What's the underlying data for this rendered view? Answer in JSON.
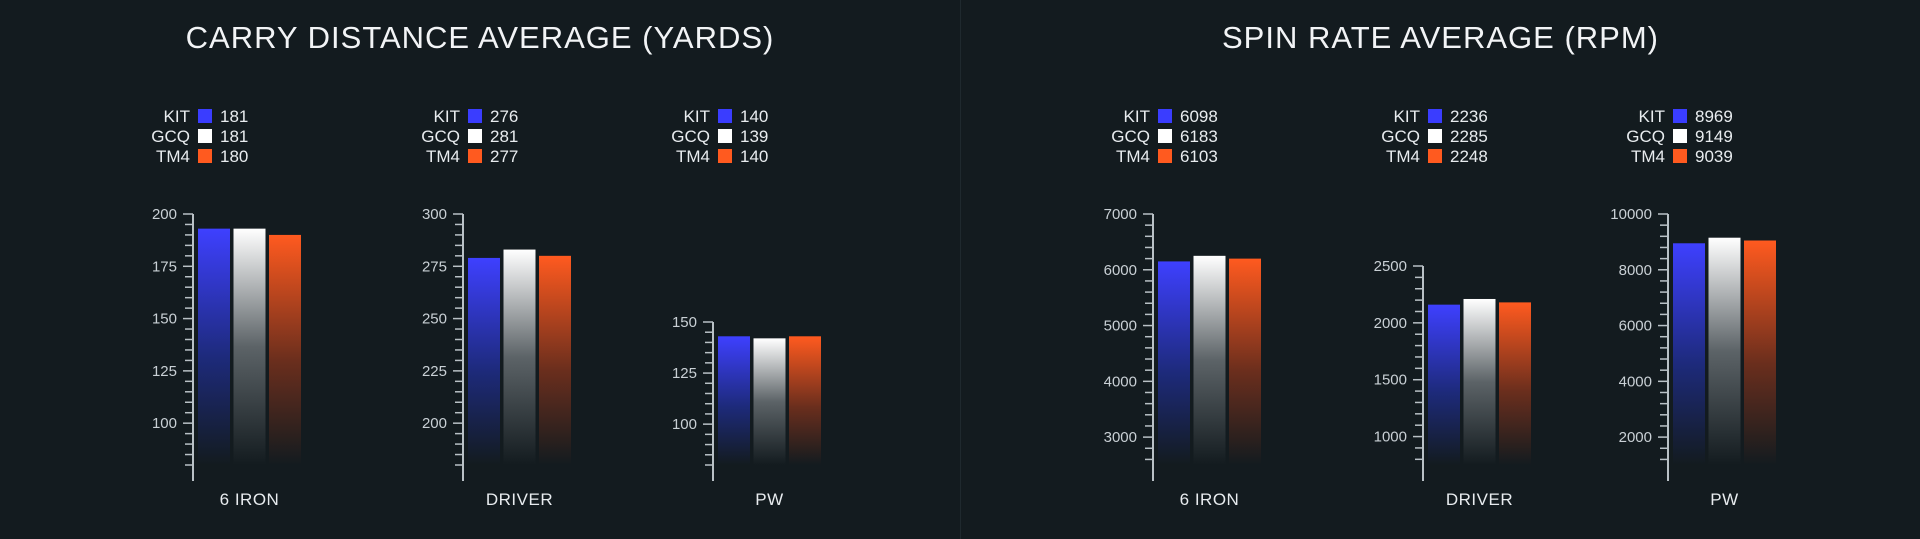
{
  "colors": {
    "background": "#131b1f",
    "axis": "#b9c1c6",
    "KIT": "#3a3dff",
    "GCQ": "#ffffff",
    "TM4": "#ff5a1f"
  },
  "legend_keys": [
    "KIT",
    "GCQ",
    "TM4"
  ],
  "chart_data": [
    {
      "type": "bar",
      "panel": "carry",
      "title": "CARRY DISTANCE AVERAGE (YARDS)",
      "groups": [
        {
          "category": "6 IRON",
          "series": [
            {
              "name": "KIT",
              "value": 181
            },
            {
              "name": "GCQ",
              "value": 181
            },
            {
              "name": "TM4",
              "value": 180
            }
          ],
          "bar_values": [
            193,
            193,
            190
          ],
          "ylim": [
            80,
            200
          ],
          "yticks": [
            100,
            125,
            150,
            175,
            200
          ],
          "minor_step": 5
        },
        {
          "category": "DRIVER",
          "series": [
            {
              "name": "KIT",
              "value": 276
            },
            {
              "name": "GCQ",
              "value": 281
            },
            {
              "name": "TM4",
              "value": 277
            }
          ],
          "bar_values": [
            279,
            283,
            280
          ],
          "ylim": [
            180,
            300
          ],
          "yticks": [
            200,
            225,
            250,
            275,
            300
          ],
          "minor_step": 5
        },
        {
          "category": "PW",
          "series": [
            {
              "name": "KIT",
              "value": 140
            },
            {
              "name": "GCQ",
              "value": 139
            },
            {
              "name": "TM4",
              "value": 140
            }
          ],
          "bar_values": [
            143,
            142,
            143
          ],
          "ylim": [
            80,
            150
          ],
          "yticks": [
            100,
            125,
            150
          ],
          "minor_step": 5
        }
      ]
    },
    {
      "type": "bar",
      "panel": "spin",
      "title": "SPIN RATE AVERAGE (RPM)",
      "groups": [
        {
          "category": "6 IRON",
          "series": [
            {
              "name": "KIT",
              "value": 6098
            },
            {
              "name": "GCQ",
              "value": 6183
            },
            {
              "name": "TM4",
              "value": 6103
            }
          ],
          "bar_values": [
            6150,
            6250,
            6200
          ],
          "ylim": [
            2500,
            7000
          ],
          "yticks": [
            3000,
            4000,
            5000,
            6000,
            7000
          ],
          "minor_step": 200
        },
        {
          "category": "DRIVER",
          "series": [
            {
              "name": "KIT",
              "value": 2236
            },
            {
              "name": "GCQ",
              "value": 2285
            },
            {
              "name": "TM4",
              "value": 2248
            }
          ],
          "bar_values": [
            2160,
            2210,
            2180
          ],
          "ylim": [
            750,
            2500
          ],
          "yticks": [
            1000,
            1500,
            2000,
            2500
          ],
          "minor_step": 100
        },
        {
          "category": "PW",
          "series": [
            {
              "name": "KIT",
              "value": 8969
            },
            {
              "name": "GCQ",
              "value": 9149
            },
            {
              "name": "TM4",
              "value": 9039
            }
          ],
          "bar_values": [
            8950,
            9150,
            9050
          ],
          "ylim": [
            1000,
            10000
          ],
          "yticks": [
            2000,
            4000,
            6000,
            8000,
            10000
          ],
          "minor_step": 400
        }
      ]
    }
  ]
}
